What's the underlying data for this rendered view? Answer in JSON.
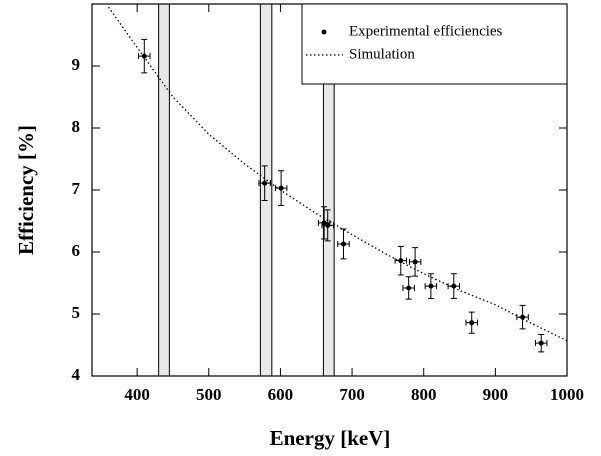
{
  "chart_data": {
    "type": "scatter",
    "xlabel": "Energy [keV]",
    "ylabel": "Efficiency [%]",
    "xlim": [
      337,
      1000
    ],
    "ylim": [
      4,
      10
    ],
    "xticks": [
      400,
      500,
      600,
      700,
      800,
      900,
      1000
    ],
    "yticks": [
      4,
      5,
      6,
      7,
      8,
      9
    ],
    "bands": {
      "color": "#e8e8e8",
      "ranges": [
        [
          430,
          445
        ],
        [
          572,
          588
        ],
        [
          660,
          675
        ]
      ]
    },
    "series": [
      {
        "name": "Experimental efficiencies",
        "color": "#000000",
        "x": [
          410,
          578,
          601,
          661,
          666,
          688,
          768,
          779,
          788,
          810,
          842,
          867,
          938,
          964
        ],
        "values": [
          9.16,
          7.11,
          7.03,
          6.47,
          6.43,
          6.13,
          5.86,
          5.42,
          5.84,
          5.45,
          5.45,
          4.86,
          4.95,
          4.53
        ],
        "x_err": [
          8,
          8,
          8,
          8,
          8,
          8,
          8,
          8,
          8,
          8,
          8,
          8,
          8,
          8
        ],
        "y_err": [
          0.27,
          0.28,
          0.28,
          0.26,
          0.25,
          0.24,
          0.23,
          0.18,
          0.23,
          0.2,
          0.2,
          0.17,
          0.19,
          0.14
        ]
      },
      {
        "name": "Simulation",
        "color": "#000000",
        "style": "dotted",
        "x": [
          360,
          400,
          450,
          500,
          550,
          600,
          650,
          700,
          750,
          800,
          850,
          900,
          950,
          1000
        ],
        "values": [
          9.95,
          9.3,
          8.5,
          7.9,
          7.42,
          7.0,
          6.62,
          6.28,
          5.95,
          5.65,
          5.38,
          5.15,
          4.85,
          4.57
        ]
      }
    ]
  }
}
